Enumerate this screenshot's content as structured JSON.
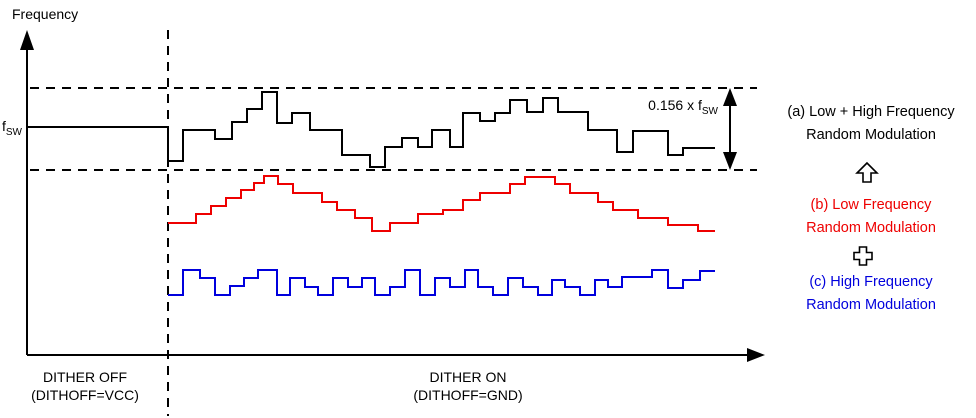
{
  "diagram": {
    "y_axis_label": "Frequency",
    "fsw_label": {
      "base": "f",
      "sub": "SW"
    },
    "delta_label": {
      "prefix": "0.156 x ",
      "base": "f",
      "sub": "SW"
    },
    "dither_off": {
      "line1": "DITHER OFF",
      "line2": "(DITHOFF=VCC)"
    },
    "dither_on": {
      "line1": "DITHER ON",
      "line2": "(DITHOFF=GND)"
    }
  },
  "legend": {
    "a": {
      "line1": "(a) Low + High Frequency",
      "line2": "Random Modulation",
      "color": "#000000"
    },
    "b": {
      "line1": "(b) Low Frequency",
      "line2": "Random Modulation",
      "color": "#ee0000"
    },
    "c": {
      "line1": "(c) High Frequency",
      "line2": "Random Modulation",
      "color": "#0000dd"
    },
    "separator_1_icon": "up-arrow",
    "separator_2_icon": "plus"
  },
  "colors": {
    "axis": "#000000",
    "wave_a": "#000000",
    "wave_b": "#ee0000",
    "wave_c": "#0000dd"
  },
  "chart_data": {
    "type": "line",
    "note": "Stepped switching-frequency waveforms vs time; coordinates are screen pixels",
    "x_range": [
      168,
      715
    ],
    "guides": {
      "fsw_level_y": 127,
      "upper_dashed_y": 88,
      "lower_dashed_y": 170,
      "dither_boundary_x": 168,
      "delta_span_label": "0.156 x fSW"
    },
    "waveforms": [
      {
        "name": "wave-a-low-plus-high-frequency-random-modulation",
        "color": "#000000",
        "start": [
          168,
          127
        ],
        "steps": [
          [
            183,
            161
          ],
          [
            215,
            130
          ],
          [
            232,
            139
          ],
          [
            247,
            122
          ],
          [
            262,
            109
          ],
          [
            277,
            92
          ],
          [
            292,
            123
          ],
          [
            310,
            113
          ],
          [
            342,
            130
          ],
          [
            370,
            155
          ],
          [
            385,
            167
          ],
          [
            402,
            147
          ],
          [
            418,
            138
          ],
          [
            432,
            147
          ],
          [
            450,
            130
          ],
          [
            463,
            147
          ],
          [
            480,
            113
          ],
          [
            495,
            121
          ],
          [
            510,
            113
          ],
          [
            527,
            100
          ],
          [
            543,
            112
          ],
          [
            558,
            98
          ],
          [
            588,
            112
          ],
          [
            617,
            130
          ],
          [
            633,
            152
          ],
          [
            668,
            131
          ],
          [
            683,
            155
          ],
          [
            700,
            148
          ],
          [
            715,
            148
          ]
        ]
      },
      {
        "name": "wave-b-low-frequency-random-modulation",
        "color": "#ee0000",
        "start": [
          168,
          223
        ],
        "steps": [
          [
            196,
            223
          ],
          [
            211,
            214
          ],
          [
            226,
            206
          ],
          [
            241,
            198
          ],
          [
            254,
            190
          ],
          [
            264,
            183
          ],
          [
            278,
            176
          ],
          [
            293,
            184
          ],
          [
            322,
            193
          ],
          [
            337,
            202
          ],
          [
            355,
            210
          ],
          [
            372,
            218
          ],
          [
            390,
            231
          ],
          [
            418,
            223
          ],
          [
            443,
            214
          ],
          [
            463,
            210
          ],
          [
            480,
            200
          ],
          [
            510,
            193
          ],
          [
            525,
            184
          ],
          [
            555,
            177
          ],
          [
            570,
            184
          ],
          [
            598,
            193
          ],
          [
            613,
            202
          ],
          [
            638,
            210
          ],
          [
            668,
            218
          ],
          [
            698,
            225
          ],
          [
            715,
            231
          ]
        ]
      },
      {
        "name": "wave-c-high-frequency-random-modulation",
        "color": "#0000dd",
        "start": [
          168,
          295
        ],
        "steps": [
          [
            183,
            295
          ],
          [
            200,
            270
          ],
          [
            215,
            278
          ],
          [
            230,
            295
          ],
          [
            244,
            286
          ],
          [
            258,
            278
          ],
          [
            277,
            270
          ],
          [
            290,
            295
          ],
          [
            305,
            278
          ],
          [
            318,
            287
          ],
          [
            333,
            295
          ],
          [
            348,
            278
          ],
          [
            362,
            287
          ],
          [
            375,
            278
          ],
          [
            390,
            295
          ],
          [
            405,
            287
          ],
          [
            420,
            270
          ],
          [
            435,
            295
          ],
          [
            450,
            278
          ],
          [
            465,
            287
          ],
          [
            478,
            270
          ],
          [
            493,
            287
          ],
          [
            508,
            295
          ],
          [
            523,
            278
          ],
          [
            538,
            287
          ],
          [
            552,
            295
          ],
          [
            565,
            280
          ],
          [
            580,
            287
          ],
          [
            595,
            295
          ],
          [
            608,
            280
          ],
          [
            622,
            287
          ],
          [
            652,
            277
          ],
          [
            668,
            270
          ],
          [
            683,
            288
          ],
          [
            700,
            280
          ],
          [
            715,
            271
          ]
        ]
      }
    ]
  }
}
